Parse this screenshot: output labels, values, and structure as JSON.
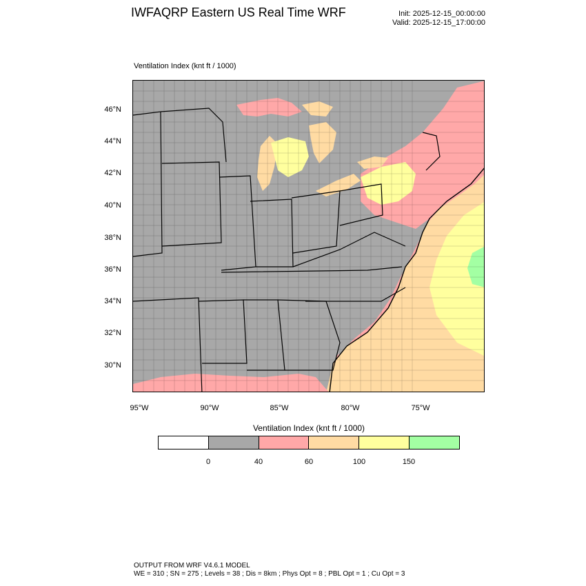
{
  "header": {
    "title": "IWFAQRP Eastern US Real Time WRF",
    "init": "Init: 2025-12-15_00:00:00",
    "valid": "Valid: 2025-12-15_17:00:00"
  },
  "field_label": "Ventilation Index   (knt ft / 1000)",
  "map": {
    "lat_labels": [
      "46°N",
      "44°N",
      "42°N",
      "40°N",
      "38°N",
      "36°N",
      "34°N",
      "32°N",
      "30°N"
    ],
    "lon_labels": [
      "95°W",
      "90°W",
      "85°W",
      "80°W",
      "75°W"
    ]
  },
  "legend": {
    "title": "Ventilation Index  (knt ft / 1000)",
    "colors": [
      "#ffffff",
      "#a8a8a8",
      "#ffa8a8",
      "#ffdba3",
      "#ffff9e",
      "#a3ffa3"
    ],
    "ticks": [
      "0",
      "40",
      "60",
      "100",
      "150"
    ]
  },
  "footer": {
    "line1": "OUTPUT FROM WRF V4.6.1 MODEL",
    "line2": "WE = 310 ; SN = 275 ; Levels = 38 ; Dis = 8km ; Phys Opt = 8 ; PBL Opt = 1 ; Cu Opt = 3"
  }
}
